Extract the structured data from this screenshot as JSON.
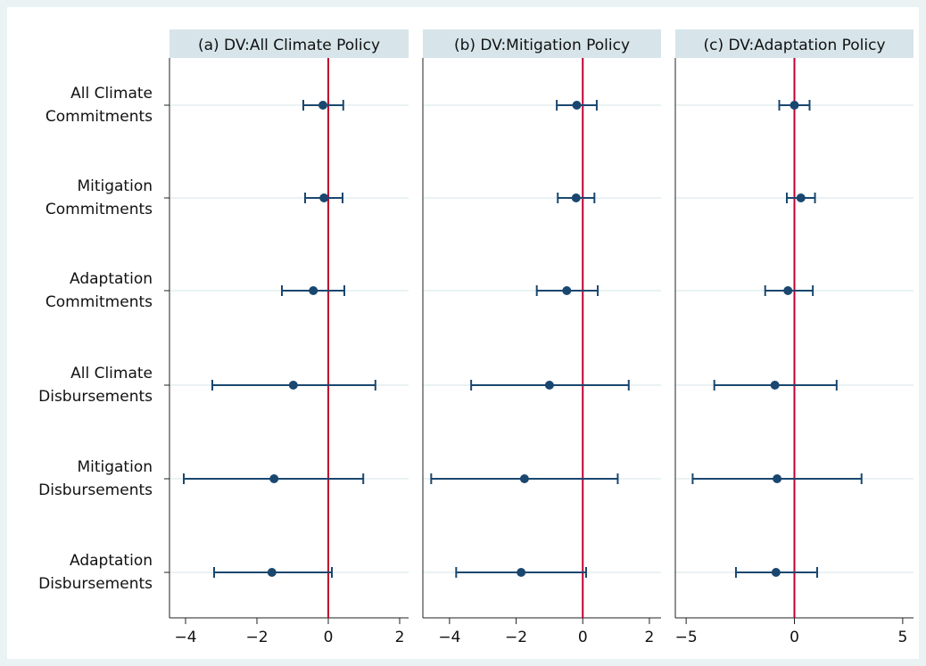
{
  "chart_data": {
    "type": "scatter",
    "subtype": "coefficient-plot-with-confidence-intervals",
    "categories": [
      {
        "line1": "All Climate",
        "line2": "Commitments"
      },
      {
        "line1": "Mitigation",
        "line2": "Commitments"
      },
      {
        "line1": "Adaptation",
        "line2": "Commitments"
      },
      {
        "line1": "All Climate",
        "line2": "Disbursements"
      },
      {
        "line1": "Mitigation",
        "line2": "Disbursements"
      },
      {
        "line1": "Adaptation",
        "line2": "Disbursements"
      }
    ],
    "reference_line_x": 0,
    "colors": {
      "outer_background": "#eaf2f3",
      "plot_background": "#ffffff",
      "title_strip": "#d7e5ea",
      "point": "#1a476f",
      "reference_line": "#c00030",
      "gridline": "#eaf2f3"
    },
    "panels": [
      {
        "title": "(a) DV:All Climate Policy",
        "xlim": [
          -4.45,
          2.25
        ],
        "xticks": [
          -4,
          -2,
          0,
          2
        ],
        "xtick_labels": [
          "−4",
          "−2",
          "0",
          "2"
        ],
        "estimates": [
          -0.15,
          -0.12,
          -0.42,
          -0.98,
          -1.52,
          -1.58
        ],
        "ci_low": [
          -0.7,
          -0.65,
          -1.3,
          -3.25,
          -4.05,
          -3.2
        ],
        "ci_high": [
          0.42,
          0.4,
          0.45,
          1.32,
          0.98,
          0.1
        ]
      },
      {
        "title": "(b) DV:Mitigation Policy",
        "xlim": [
          -4.8,
          2.35
        ],
        "xticks": [
          -4,
          -2,
          0,
          2
        ],
        "xtick_labels": [
          "−4",
          "−2",
          "0",
          "2"
        ],
        "estimates": [
          -0.18,
          -0.2,
          -0.48,
          -1.0,
          -1.75,
          -1.85
        ],
        "ci_low": [
          -0.78,
          -0.75,
          -1.38,
          -3.35,
          -4.55,
          -3.8
        ],
        "ci_high": [
          0.42,
          0.35,
          0.45,
          1.38,
          1.05,
          0.1
        ]
      },
      {
        "title": "(c) DV:Adaptation Policy",
        "xlim": [
          -5.5,
          5.5
        ],
        "xticks": [
          -5,
          0,
          5
        ],
        "xtick_labels": [
          "−5",
          "0",
          "5"
        ],
        "estimates": [
          0.0,
          0.3,
          -0.3,
          -0.9,
          -0.8,
          -0.85
        ],
        "ci_low": [
          -0.7,
          -0.35,
          -1.35,
          -3.7,
          -4.7,
          -2.7
        ],
        "ci_high": [
          0.7,
          0.95,
          0.85,
          1.95,
          3.1,
          1.05
        ]
      }
    ]
  }
}
